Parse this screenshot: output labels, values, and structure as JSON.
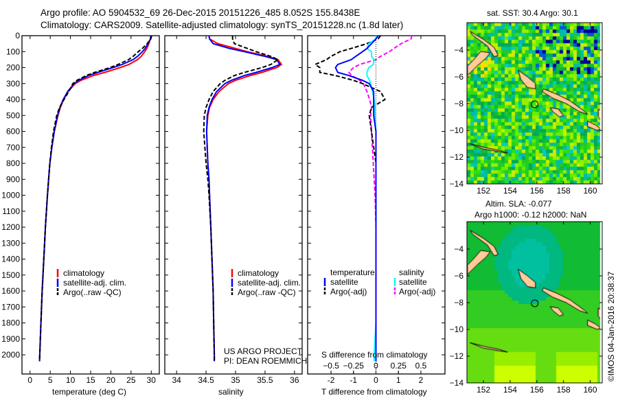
{
  "header": {
    "line1": "Argo profile: AO 5904532_69 26-Dec-2015 20151226_485 8.052S 155.8438E",
    "line2": "Climatology: CARS2009. Satellite-adjusted climatology: synTS_20151228.nc (1.8d later)"
  },
  "colors": {
    "climatology": "#ff0000",
    "satellite_temp": "#0000ff",
    "argo": "#000000",
    "satellite_sal": "#00ffff",
    "argo_sal": "#ff00ff",
    "land": "#ffcc99"
  },
  "chart_data": [
    {
      "type": "line",
      "name": "temperature",
      "xlabel": "temperature (deg C)",
      "ylabel": "",
      "xlim": [
        -2,
        32
      ],
      "ylim": [
        2120,
        0
      ],
      "xticks": [
        0,
        5,
        10,
        15,
        20,
        25,
        30
      ],
      "yticks": [
        0,
        100,
        200,
        300,
        400,
        500,
        600,
        700,
        800,
        900,
        1000,
        1100,
        1200,
        1300,
        1400,
        1500,
        1600,
        1700,
        1800,
        1900,
        2000
      ],
      "legend": [
        "climatology",
        "satellite-adj. clim.",
        "Argo(..raw -QC)"
      ],
      "depth": [
        0,
        20,
        50,
        80,
        100,
        130,
        150,
        180,
        200,
        230,
        250,
        280,
        300,
        350,
        400,
        450,
        500,
        600,
        700,
        800,
        900,
        1000,
        1200,
        1400,
        1600,
        1800,
        2000,
        2040
      ],
      "series": [
        {
          "name": "climatology",
          "values": [
            29.9,
            29.8,
            29.4,
            28.9,
            28.4,
            27.5,
            26.6,
            24.5,
            22.3,
            18.5,
            15.7,
            12.6,
            11.2,
            9.4,
            8.3,
            7.5,
            6.9,
            6.0,
            5.4,
            4.9,
            4.6,
            4.3,
            3.8,
            3.4,
            3.0,
            2.7,
            2.4,
            2.35
          ]
        },
        {
          "name": "satellite-adj. clim.",
          "values": [
            29.9,
            29.8,
            29.2,
            28.5,
            27.8,
            26.6,
            25.5,
            22.8,
            20.5,
            16.8,
            14.5,
            12.0,
            10.9,
            9.3,
            8.2,
            7.4,
            6.8,
            6.0,
            5.4,
            4.9,
            4.6,
            4.3,
            3.8,
            3.4,
            3.0,
            2.7,
            2.4,
            2.35
          ]
        },
        {
          "name": "Argo(..raw -QC)",
          "values": [
            30.1,
            29.9,
            29.0,
            27.8,
            26.8,
            25.5,
            24.4,
            21.8,
            19.8,
            16.0,
            13.9,
            11.6,
            10.6,
            9.6,
            8.4,
            7.3,
            6.6,
            5.8,
            5.3,
            4.9,
            4.6,
            4.3,
            3.8,
            3.4,
            3.0,
            2.7,
            2.4,
            2.35
          ]
        }
      ]
    },
    {
      "type": "line",
      "name": "salinity",
      "xlabel": "salinity",
      "xlim": [
        33.8,
        36.13
      ],
      "ylim": [
        2120,
        0
      ],
      "xticks": [
        34,
        34.5,
        35,
        35.5,
        36
      ],
      "legend": [
        "climatology",
        "satellite-adj. clim.",
        "Argo(..raw -QC)"
      ],
      "depth": [
        0,
        20,
        50,
        80,
        100,
        130,
        150,
        180,
        200,
        230,
        250,
        280,
        300,
        350,
        400,
        450,
        500,
        600,
        700,
        800,
        900,
        1000,
        1200,
        1400,
        1600,
        1800,
        2000,
        2040
      ],
      "series": [
        {
          "name": "climatology",
          "values": [
            34.55,
            34.56,
            34.7,
            35.0,
            35.2,
            35.55,
            35.72,
            35.78,
            35.7,
            35.45,
            35.25,
            35.0,
            34.88,
            34.72,
            34.62,
            34.56,
            34.53,
            34.51,
            34.52,
            34.53,
            34.55,
            34.56,
            34.58,
            34.6,
            34.62,
            34.63,
            34.64,
            34.64
          ]
        },
        {
          "name": "satellite-adj. clim.",
          "values": [
            34.55,
            34.56,
            34.62,
            34.9,
            35.15,
            35.5,
            35.7,
            35.75,
            35.62,
            35.35,
            35.15,
            34.93,
            34.82,
            34.68,
            34.6,
            34.55,
            34.52,
            34.51,
            34.52,
            34.53,
            34.55,
            34.56,
            34.58,
            34.6,
            34.62,
            34.63,
            34.64,
            34.64
          ]
        },
        {
          "name": "Argo(..raw -QC)",
          "values": [
            34.95,
            34.95,
            34.98,
            35.2,
            35.35,
            35.6,
            35.72,
            35.6,
            35.45,
            35.15,
            34.98,
            34.82,
            34.74,
            34.62,
            34.55,
            34.5,
            34.47,
            34.46,
            34.48,
            34.5,
            34.53,
            34.55,
            34.58,
            34.6,
            34.62,
            34.63,
            34.64,
            34.64
          ]
        }
      ]
    },
    {
      "type": "line",
      "name": "difference",
      "xlabel": "T difference from climatology",
      "x2label": "S difference from climatology",
      "xlim": [
        -3.04,
        3.07
      ],
      "ylim": [
        2120,
        0
      ],
      "xticks": [
        -2,
        -1,
        0,
        1,
        2
      ],
      "x2ticks": [
        -0.5,
        -0.25,
        0,
        0.25,
        0.5
      ],
      "legend": {
        "temperature_title": "temperature",
        "salinity_title": "salinity",
        "items": [
          "satellite",
          "Argo(-adj)",
          "satellite",
          "Argo(-adj)"
        ]
      },
      "depth": [
        0,
        20,
        50,
        80,
        100,
        130,
        150,
        180,
        200,
        230,
        250,
        280,
        300,
        350,
        400,
        450,
        500,
        600,
        700,
        800,
        900,
        1000,
        1200,
        1400,
        1600,
        1800,
        2000,
        2040
      ],
      "series": [
        {
          "name": "T satellite",
          "values": [
            0.1,
            0,
            -0.2,
            -0.4,
            -0.6,
            -0.9,
            -1.1,
            -1.7,
            -1.8,
            -1.7,
            -1.2,
            -0.6,
            -0.3,
            -0.1,
            -0.1,
            -0.1,
            -0.1,
            0,
            0,
            0,
            0,
            0,
            0,
            0,
            0,
            0,
            0,
            0
          ]
        },
        {
          "name": "T Argo(-adj)",
          "values": [
            0.2,
            0.1,
            -0.4,
            -1.1,
            -1.6,
            -2.0,
            -2.2,
            -2.7,
            -2.5,
            -2.5,
            -1.8,
            -1.0,
            -0.6,
            0.2,
            0.4,
            -0.2,
            -0.3,
            -0.2,
            -0.1,
            0,
            0,
            0,
            0,
            0,
            0,
            0,
            0,
            0
          ]
        },
        {
          "name": "S satellite",
          "values": [
            0,
            0,
            -0.08,
            -0.1,
            -0.05,
            -0.05,
            -0.02,
            -0.03,
            -0.08,
            -0.1,
            -0.1,
            -0.07,
            -0.06,
            -0.04,
            -0.02,
            -0.01,
            -0.01,
            0,
            0,
            0,
            0,
            0,
            0,
            0,
            0,
            0,
            -0.02,
            -0.02
          ]
        },
        {
          "name": "S Argo(-adj)",
          "values": [
            0.4,
            0.39,
            0.28,
            0.2,
            0.15,
            0.05,
            0,
            -0.18,
            -0.25,
            -0.3,
            -0.27,
            -0.18,
            -0.14,
            -0.1,
            -0.07,
            -0.05,
            -0.06,
            -0.05,
            -0.04,
            -0.03,
            -0.02,
            -0.01,
            0,
            0,
            0,
            0,
            0,
            0
          ]
        }
      ]
    },
    {
      "type": "heatmap",
      "name": "sst-map",
      "title": "sat. SST: 30.4 Argo: 30.1",
      "xlim": [
        150.76,
        160.9
      ],
      "ylim": [
        -14,
        -1.95
      ],
      "xticks": [
        152,
        154,
        156,
        158,
        160
      ],
      "yticks": [
        -4,
        -6,
        -8,
        -10,
        -12,
        -14
      ],
      "marker": {
        "lon": 155.8438,
        "lat": -8.052
      }
    },
    {
      "type": "heatmap",
      "name": "sla-map",
      "title": "Altim. SLA: -0.077",
      "subtitle": "Argo h1000: -0.12 h2000: NaN",
      "xlim": [
        150.76,
        160.9
      ],
      "ylim": [
        -14,
        -1.95
      ],
      "xticks": [
        152,
        154,
        156,
        158,
        160
      ],
      "yticks": [
        -4,
        -6,
        -8,
        -10,
        -12,
        -14
      ],
      "marker": {
        "lon": 155.8438,
        "lat": -8.052
      }
    }
  ],
  "annotations": {
    "project": "US ARGO PROJECT",
    "pi": "PI: DEAN ROEMMICH",
    "credit": "©IMOS 04-Jan-2016 20:38:37"
  }
}
